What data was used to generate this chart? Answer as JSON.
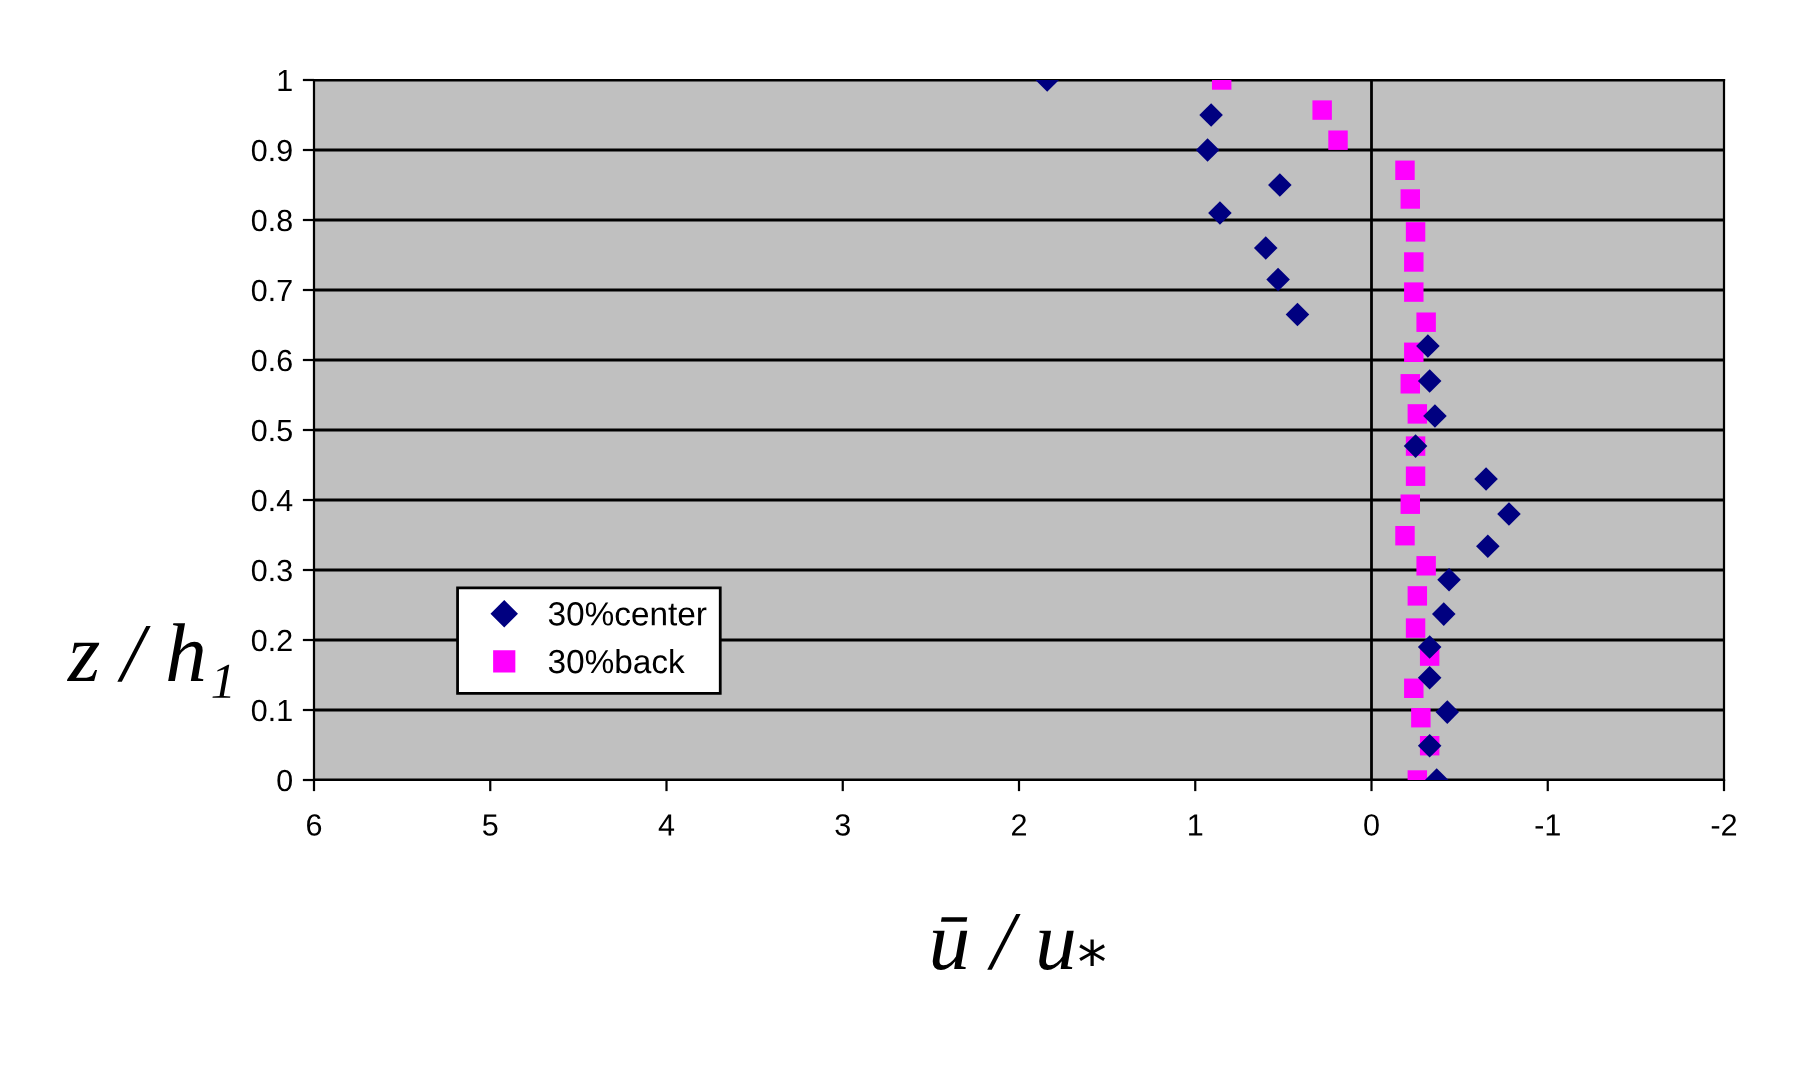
{
  "chart_data": {
    "type": "scatter",
    "xlabel": "ū / u$_{*}$",
    "ylabel": "z / h₁",
    "xlim": [
      6,
      -2
    ],
    "xticks": [
      6,
      5,
      4,
      3,
      2,
      1,
      0,
      -1,
      -2
    ],
    "ylim": [
      0,
      1
    ],
    "yticks": [
      0,
      0.1,
      0.2,
      0.3,
      0.4,
      0.5,
      0.6,
      0.7,
      0.8,
      0.9,
      1
    ],
    "grid": "y",
    "legend": "bottom left",
    "ref_lines": [
      {
        "axis": "x",
        "value": 0,
        "color": "#000000"
      }
    ],
    "series": [
      {
        "name": "30%center",
        "color": "#000080",
        "marker": "diamond",
        "x": [
          1.84,
          0.91,
          0.93,
          0.52,
          0.86,
          0.6,
          0.53,
          0.42,
          -0.32,
          -0.33,
          -0.36,
          -0.25,
          -0.65,
          -0.78,
          -0.66,
          -0.44,
          -0.41,
          -0.33,
          -0.33,
          -0.43,
          -0.33,
          -0.37
        ],
        "values": [
          1.0,
          0.95,
          0.9,
          0.85,
          0.81,
          0.76,
          0.715,
          0.665,
          0.62,
          0.57,
          0.52,
          0.477,
          0.43,
          0.38,
          0.334,
          0.286,
          0.237,
          0.19,
          0.146,
          0.097,
          0.049,
          0.0
        ]
      },
      {
        "name": "30%back",
        "color": "#ff00ff",
        "marker": "square",
        "x": [
          0.85,
          0.28,
          0.19,
          -0.19,
          -0.22,
          -0.25,
          -0.24,
          -0.24,
          -0.31,
          -0.24,
          -0.22,
          -0.26,
          -0.25,
          -0.25,
          -0.22,
          -0.19,
          -0.31,
          -0.26,
          -0.25,
          -0.33,
          -0.24,
          -0.28,
          -0.33,
          -0.26
        ],
        "values": [
          1.0,
          0.957,
          0.914,
          0.871,
          0.83,
          0.783,
          0.74,
          0.697,
          0.654,
          0.611,
          0.566,
          0.523,
          0.477,
          0.434,
          0.394,
          0.349,
          0.306,
          0.263,
          0.217,
          0.177,
          0.131,
          0.089,
          0.049,
          0.0
        ]
      }
    ]
  }
}
